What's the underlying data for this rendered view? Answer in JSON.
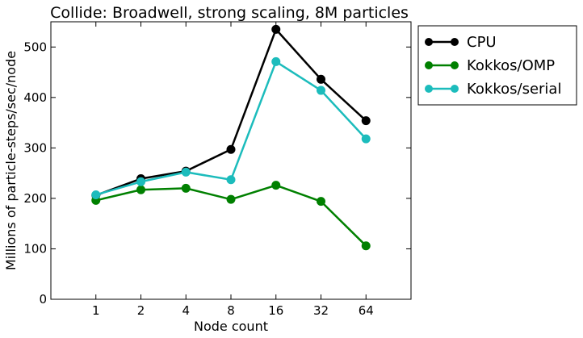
{
  "chart_data": {
    "type": "line",
    "title": "Collide: Broadwell, strong scaling, 8M particles",
    "xlabel": "Node count",
    "ylabel": "Millions of particle-steps/sec/node",
    "categories": [
      "1",
      "2",
      "4",
      "8",
      "16",
      "32",
      "64"
    ],
    "yticks": [
      "0",
      "100",
      "200",
      "300",
      "400",
      "500"
    ],
    "ylim": [
      0,
      550
    ],
    "grid": false,
    "legend_position": "outside-right-top",
    "series": [
      {
        "name": "CPU",
        "color": "#000000",
        "values": [
          206,
          239,
          254,
          297,
          535,
          436,
          354
        ]
      },
      {
        "name": "Kokkos/OMP",
        "color": "#008000",
        "values": [
          196,
          217,
          220,
          198,
          226,
          194,
          106
        ]
      },
      {
        "name": "Kokkos/serial",
        "color": "#1cbcbc",
        "values": [
          207,
          233,
          252,
          237,
          471,
          414,
          318
        ]
      }
    ]
  }
}
